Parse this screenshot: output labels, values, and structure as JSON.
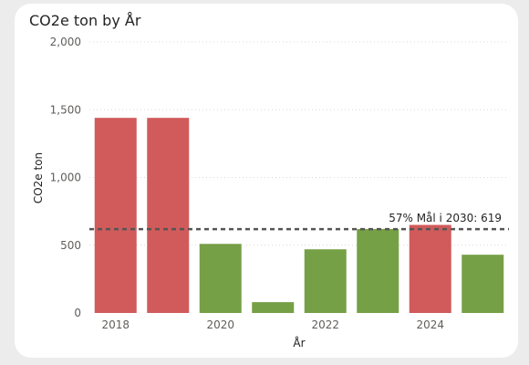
{
  "chart_data": {
    "type": "bar",
    "title": "CO2e ton by År",
    "xlabel": "År",
    "ylabel": "CO2e ton",
    "ylim": [
      0,
      2000
    ],
    "y_ticks": [
      "0",
      "500",
      "1,000",
      "1,500",
      "2,000"
    ],
    "y_tick_values": [
      0,
      500,
      1000,
      1500,
      2000
    ],
    "categories": [
      "2018",
      "2019",
      "2020",
      "2021",
      "2022",
      "2023",
      "2024",
      "2025"
    ],
    "x_tick_labels": [
      "2018",
      "",
      "2020",
      "",
      "2022",
      "",
      "2024",
      ""
    ],
    "values": [
      1440,
      1440,
      510,
      80,
      470,
      620,
      650,
      430
    ],
    "bar_colors": [
      "#d15b5b",
      "#d15b5b",
      "#76a046",
      "#76a046",
      "#76a046",
      "#76a046",
      "#d15b5b",
      "#76a046"
    ],
    "reference_line": {
      "value": 619,
      "label": "57% Mål i 2030: 619",
      "color": "#555555",
      "style": "dashed"
    },
    "grid": true,
    "legend": "none"
  }
}
